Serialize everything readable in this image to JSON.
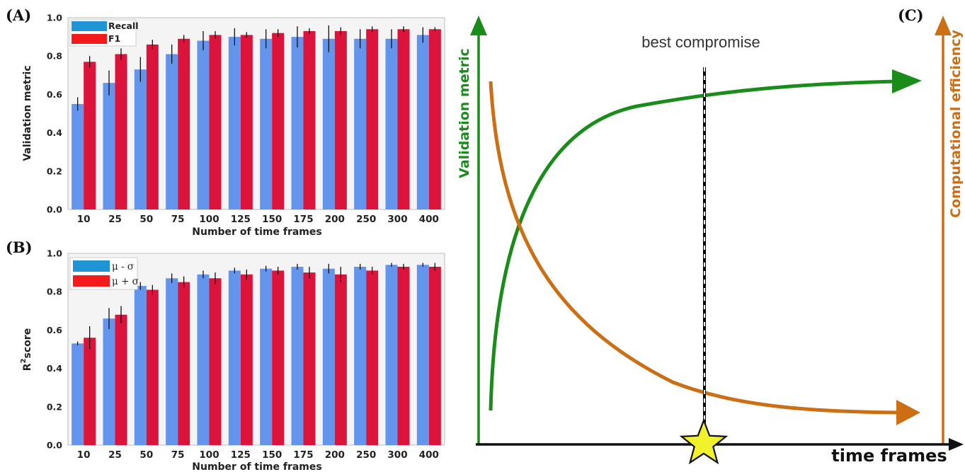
{
  "colors": {
    "series_a": "#6495ed",
    "series_b": "#dc143c",
    "legend_a": "#1f95d6",
    "legend_b": "#f21a1a",
    "panel_bg": "#f4f4f4",
    "green": "#1a8c1a",
    "orange": "#cc6e14",
    "star": "#f2f22a"
  },
  "panels": {
    "a_label": "(A)",
    "b_label": "(B)",
    "c_label": "(C)"
  },
  "chart_data": [
    {
      "type": "bar",
      "panel": "A",
      "categories": [
        "10",
        "25",
        "50",
        "75",
        "100",
        "125",
        "150",
        "175",
        "200",
        "250",
        "300",
        "400"
      ],
      "xlabel": "Number of time frames",
      "ylabel": "Validation metric",
      "ylim": [
        0,
        1.0
      ],
      "yticks": [
        "0.0",
        "0.2",
        "0.4",
        "0.6",
        "0.8",
        "1.0"
      ],
      "legend_position": "top-left",
      "grid": false,
      "series": [
        {
          "name": "Recall",
          "values": [
            0.55,
            0.66,
            0.73,
            0.81,
            0.88,
            0.9,
            0.89,
            0.9,
            0.89,
            0.89,
            0.89,
            0.91
          ],
          "err": [
            0.035,
            0.065,
            0.065,
            0.05,
            0.05,
            0.045,
            0.05,
            0.055,
            0.07,
            0.05,
            0.05,
            0.04
          ]
        },
        {
          "name": "F1",
          "values": [
            0.77,
            0.81,
            0.86,
            0.89,
            0.91,
            0.91,
            0.92,
            0.93,
            0.93,
            0.94,
            0.94,
            0.94
          ],
          "err": [
            0.03,
            0.03,
            0.025,
            0.02,
            0.02,
            0.015,
            0.02,
            0.015,
            0.02,
            0.015,
            0.015,
            0.01
          ]
        }
      ]
    },
    {
      "type": "bar",
      "panel": "B",
      "categories": [
        "10",
        "25",
        "50",
        "75",
        "100",
        "125",
        "150",
        "175",
        "200",
        "250",
        "300",
        "400"
      ],
      "xlabel": "Number of time frames",
      "ylabel_main": "R",
      "ylabel_sup": "2",
      "ylabel_rest": "score",
      "ylim": [
        0,
        1.0
      ],
      "yticks": [
        "0.0",
        "0.2",
        "0.4",
        "0.6",
        "0.8",
        "1.0"
      ],
      "legend_position": "top-left",
      "grid": false,
      "series": [
        {
          "name": "μ - σ",
          "values": [
            0.53,
            0.66,
            0.83,
            0.87,
            0.89,
            0.91,
            0.92,
            0.93,
            0.92,
            0.93,
            0.94,
            0.94
          ],
          "err": [
            0.01,
            0.055,
            0.02,
            0.025,
            0.02,
            0.015,
            0.015,
            0.015,
            0.025,
            0.015,
            0.01,
            0.01
          ]
        },
        {
          "name": "μ + σ",
          "values": [
            0.56,
            0.68,
            0.81,
            0.85,
            0.87,
            0.89,
            0.91,
            0.9,
            0.89,
            0.91,
            0.93,
            0.93
          ],
          "err": [
            0.06,
            0.045,
            0.025,
            0.03,
            0.03,
            0.025,
            0.02,
            0.03,
            0.04,
            0.02,
            0.015,
            0.02
          ]
        }
      ]
    }
  ],
  "schematic": {
    "left_axis_label": "Validation metric",
    "right_axis_label": "Computational efficiency",
    "x_axis_label": "time frames",
    "annotation": "best compromise"
  }
}
